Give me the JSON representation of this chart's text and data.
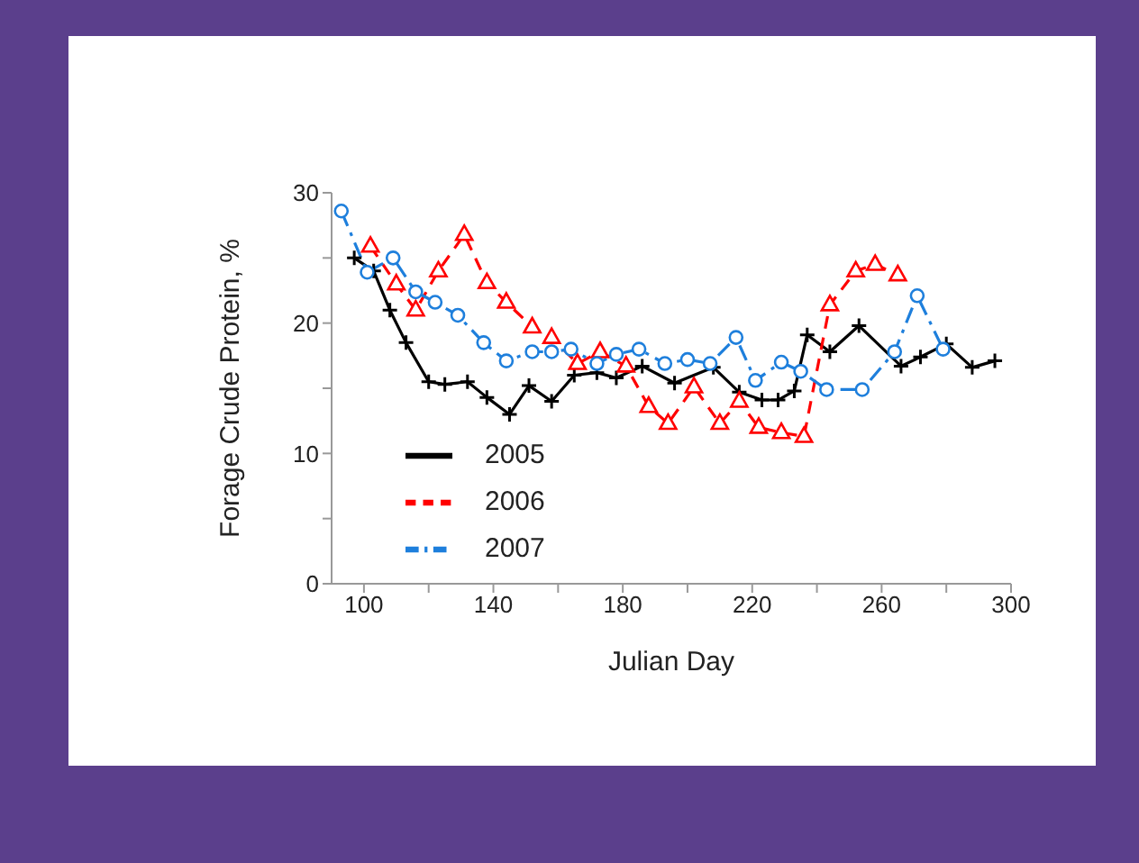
{
  "chart_data": {
    "type": "line",
    "xlabel": "Julian Day",
    "ylabel": "Forage Crude Protein, %",
    "xlim": [
      90,
      300
    ],
    "ylim": [
      0,
      30
    ],
    "xticks": [
      100,
      {
        "value": 120,
        "label": null
      },
      140,
      {
        "value": 160,
        "label": null
      },
      180,
      {
        "value": 200,
        "label": null
      },
      220,
      {
        "value": 240,
        "label": null
      },
      260,
      {
        "value": 280,
        "label": null
      },
      300
    ],
    "yticks": [
      0,
      {
        "value": 5,
        "label": null
      },
      10,
      {
        "value": 15,
        "label": null
      },
      20,
      {
        "value": 25,
        "label": null
      },
      30
    ],
    "grid": false,
    "legend": "bottom left",
    "series": [
      {
        "name": "2005",
        "color": "#000000",
        "marker": "cross",
        "line_style": "solid",
        "x": [
          97,
          103,
          108,
          113,
          120,
          125,
          132,
          138,
          145,
          151,
          158,
          165,
          172,
          178,
          186,
          196,
          208,
          216,
          223,
          228,
          233,
          237,
          244,
          253,
          266,
          272,
          280,
          288,
          295
        ],
        "values": [
          25,
          24,
          21,
          18.5,
          15.5,
          15.3,
          15.5,
          14.3,
          13,
          15.2,
          14,
          16,
          16.2,
          15.8,
          16.7,
          15.4,
          16.6,
          14.7,
          14.1,
          14.1,
          14.8,
          19.1,
          17.8,
          19.8,
          16.7,
          17.4,
          18.4,
          16.6,
          17.1
        ]
      },
      {
        "name": "2006",
        "color": "#ff0000",
        "marker": "triangle",
        "line_style": "dashed",
        "x": [
          102,
          110,
          116,
          123,
          131,
          138,
          144,
          152,
          158,
          166,
          173,
          181,
          188,
          194,
          202,
          210,
          216,
          222,
          229,
          236,
          244,
          252,
          258,
          265
        ],
        "values": [
          25.9,
          23,
          21,
          24,
          26.8,
          23.1,
          21.6,
          19.7,
          18.9,
          16.9,
          17.8,
          16.7,
          13.6,
          12.3,
          15.1,
          12.3,
          14,
          12,
          11.6,
          11.3,
          21.4,
          24,
          24.5,
          23.7
        ]
      },
      {
        "name": "2007",
        "color": "#1e7fdc",
        "marker": "circle",
        "line_style": "dashdot",
        "x": [
          93,
          101,
          109,
          116,
          122,
          129,
          137,
          144,
          152,
          158,
          164,
          172,
          178,
          185,
          193,
          200,
          207,
          215,
          221,
          229,
          235,
          243,
          254,
          264,
          271,
          279
        ],
        "values": [
          28.6,
          23.9,
          25,
          22.4,
          21.6,
          20.6,
          18.5,
          17.1,
          17.8,
          17.8,
          18,
          16.9,
          17.6,
          18,
          16.9,
          17.2,
          16.9,
          18.9,
          15.6,
          17,
          16.3,
          14.9,
          14.9,
          17.8,
          22.1,
          18
        ]
      }
    ]
  }
}
